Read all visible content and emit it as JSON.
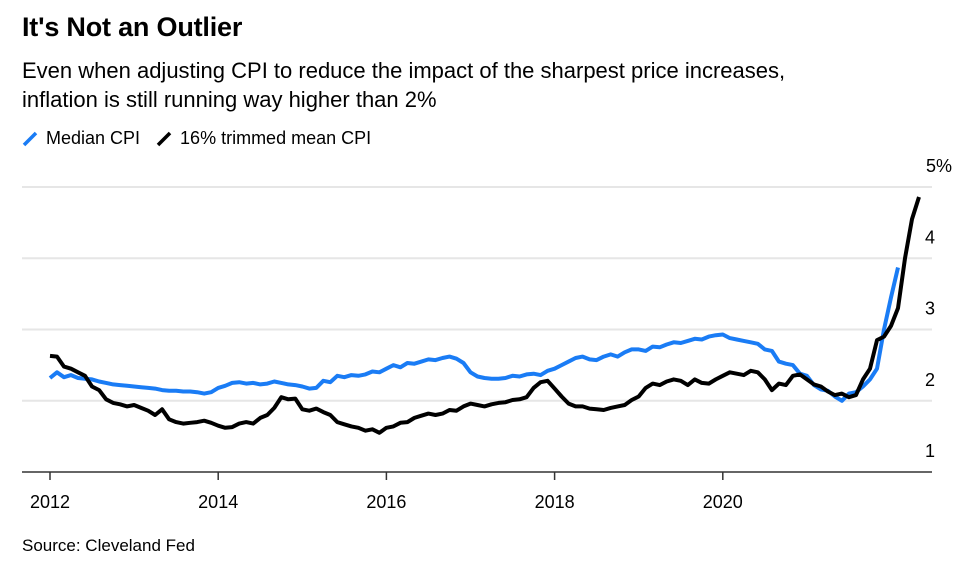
{
  "title": "It's Not an Outlier",
  "subtitle_lines": [
    "Even when adjusting CPI to reduce the impact of the sharpest price increases,",
    "inflation is still running way higher than 2%"
  ],
  "legend": [
    {
      "label": "Median CPI",
      "color": "#1a7cf5"
    },
    {
      "label": "16% trimmed mean CPI",
      "color": "#000000"
    }
  ],
  "source": "Source: Cleveland Fed",
  "chart_data": {
    "type": "line",
    "title": "It's Not an Outlier",
    "subtitle": "Even when adjusting CPI to reduce the impact of the sharpest price increases, inflation is still running way higher than 2%",
    "xlabel": "",
    "ylabel": "",
    "x_start": 2012.0,
    "x_step_months": 1,
    "xlim": [
      2011.6,
      2022.5
    ],
    "ylim": [
      1,
      5
    ],
    "yticks": [
      1,
      2,
      3,
      4,
      5
    ],
    "ytick_labels": [
      "1",
      "2",
      "3",
      "4",
      "5%"
    ],
    "xticks": [
      2012,
      2014,
      2016,
      2018,
      2020
    ],
    "xtick_labels": [
      "2012",
      "2014",
      "2016",
      "2018",
      "2020"
    ],
    "grid": true,
    "legend_position": "top-left",
    "y_axis_side": "right",
    "series": [
      {
        "name": "Median CPI",
        "color": "#1a7cf5",
        "values": [
          2.32,
          2.4,
          2.33,
          2.36,
          2.32,
          2.31,
          2.3,
          2.27,
          2.25,
          2.23,
          2.22,
          2.21,
          2.2,
          2.19,
          2.18,
          2.17,
          2.15,
          2.14,
          2.14,
          2.13,
          2.13,
          2.12,
          2.1,
          2.12,
          2.18,
          2.21,
          2.25,
          2.26,
          2.24,
          2.25,
          2.23,
          2.24,
          2.27,
          2.25,
          2.23,
          2.22,
          2.2,
          2.17,
          2.18,
          2.28,
          2.26,
          2.35,
          2.33,
          2.36,
          2.35,
          2.37,
          2.41,
          2.4,
          2.45,
          2.5,
          2.47,
          2.53,
          2.52,
          2.55,
          2.58,
          2.57,
          2.6,
          2.62,
          2.59,
          2.53,
          2.4,
          2.34,
          2.32,
          2.31,
          2.31,
          2.32,
          2.35,
          2.34,
          2.37,
          2.38,
          2.36,
          2.42,
          2.45,
          2.5,
          2.55,
          2.6,
          2.62,
          2.58,
          2.57,
          2.62,
          2.65,
          2.62,
          2.68,
          2.72,
          2.72,
          2.7,
          2.76,
          2.75,
          2.79,
          2.82,
          2.81,
          2.84,
          2.87,
          2.86,
          2.9,
          2.92,
          2.93,
          2.88,
          2.86,
          2.84,
          2.82,
          2.8,
          2.72,
          2.7,
          2.55,
          2.52,
          2.5,
          2.38,
          2.35,
          2.22,
          2.16,
          2.14,
          2.06,
          2.0,
          2.1,
          2.12,
          2.2,
          2.3,
          2.45,
          3.0,
          3.45,
          3.87
        ]
      },
      {
        "name": "16% trimmed mean CPI",
        "color": "#000000",
        "values": [
          2.63,
          2.62,
          2.48,
          2.45,
          2.4,
          2.35,
          2.2,
          2.15,
          2.02,
          1.97,
          1.95,
          1.92,
          1.94,
          1.9,
          1.86,
          1.8,
          1.88,
          1.74,
          1.7,
          1.68,
          1.69,
          1.7,
          1.72,
          1.69,
          1.65,
          1.62,
          1.63,
          1.68,
          1.7,
          1.68,
          1.76,
          1.8,
          1.9,
          2.05,
          2.02,
          2.03,
          1.88,
          1.86,
          1.89,
          1.84,
          1.8,
          1.7,
          1.67,
          1.64,
          1.62,
          1.58,
          1.6,
          1.55,
          1.62,
          1.64,
          1.69,
          1.7,
          1.76,
          1.79,
          1.82,
          1.8,
          1.82,
          1.87,
          1.86,
          1.92,
          1.96,
          1.94,
          1.92,
          1.95,
          1.97,
          1.98,
          2.01,
          2.02,
          2.05,
          2.18,
          2.26,
          2.28,
          2.17,
          2.06,
          1.96,
          1.92,
          1.92,
          1.89,
          1.88,
          1.87,
          1.9,
          1.92,
          1.94,
          2.01,
          2.06,
          2.18,
          2.24,
          2.22,
          2.27,
          2.3,
          2.28,
          2.22,
          2.3,
          2.25,
          2.24,
          2.3,
          2.35,
          2.4,
          2.38,
          2.36,
          2.42,
          2.4,
          2.3,
          2.15,
          2.24,
          2.22,
          2.35,
          2.37,
          2.3,
          2.23,
          2.2,
          2.13,
          2.08,
          2.1,
          2.05,
          2.08,
          2.3,
          2.45,
          2.85,
          2.9,
          3.05,
          3.3,
          4.0,
          4.55,
          4.86
        ]
      }
    ]
  }
}
